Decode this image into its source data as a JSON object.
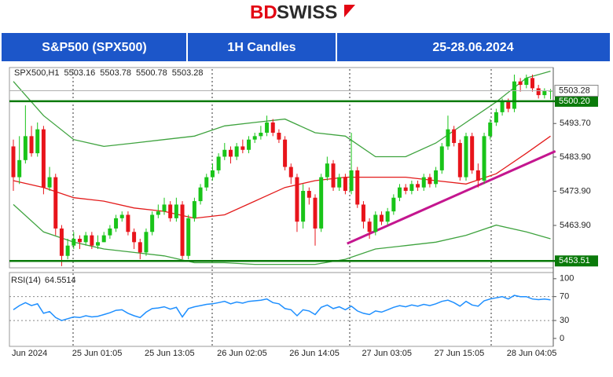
{
  "header": {
    "logo": [
      "BD",
      "SWISS"
    ],
    "tabs": [
      "S&P500 (SPX500)",
      "1H Candles",
      "25-28.06.2024"
    ]
  },
  "chart_data": [
    {
      "type": "candlestick",
      "symbol": "SPX500,H1",
      "categories": [
        "Jun 2024",
        null,
        null,
        null,
        null,
        null,
        null,
        null,
        null,
        null,
        "25 Jun 01:05",
        null,
        null,
        null,
        null,
        null,
        null,
        null,
        null,
        null,
        null,
        null,
        "25 Jun 13:05",
        null,
        null,
        null,
        null,
        null,
        null,
        null,
        null,
        null,
        null,
        null,
        "26 Jun 02:05",
        null,
        null,
        null,
        null,
        null,
        null,
        null,
        null,
        null,
        null,
        null,
        "26 Jun 14:05",
        null,
        null,
        null,
        null,
        null,
        null,
        null,
        null,
        null,
        null,
        null,
        "27 Jun 03:05",
        null,
        null,
        null,
        null,
        null,
        null,
        null,
        null,
        null,
        null,
        null,
        "27 Jun 15:05",
        null,
        null,
        null,
        null,
        null,
        null,
        null,
        null,
        null,
        null,
        null,
        "28 Jun 04:05",
        null,
        null,
        null,
        null,
        null,
        null,
        null
      ],
      "open": [
        5487,
        5478,
        5483,
        5490,
        5485,
        5492,
        5475,
        5478,
        5463,
        5455,
        5458,
        5460,
        5459,
        5461,
        5458,
        5459,
        5461,
        5463,
        5466,
        5467,
        5462,
        5459,
        5456,
        5462,
        5467,
        5468,
        5470,
        5466,
        5470,
        5455,
        5466,
        5471,
        5475,
        5478,
        5480,
        5484,
        5486,
        5484,
        5487,
        5486,
        5489,
        5490,
        5491,
        5494,
        5491,
        5489,
        5481,
        5478,
        5465,
        5474,
        5472,
        5463,
        5478,
        5482,
        5475,
        5478,
        5474,
        5480,
        5470,
        5465,
        5462,
        5467,
        5465,
        5468,
        5472,
        5475,
        5474,
        5476,
        5475,
        5478,
        5476,
        5480,
        5487,
        5492,
        5488,
        5478,
        5490,
        5480,
        5477,
        5490,
        5494,
        5497,
        5500,
        5498,
        5506,
        5505,
        5507,
        5504,
        5502,
        5503.16
      ],
      "high": [
        5489,
        5490,
        5499,
        5493,
        5494,
        5493,
        5481,
        5479,
        5464,
        5460,
        5462,
        5461,
        5462,
        5462,
        5461,
        5462,
        5464,
        5467,
        5468,
        5468,
        5463,
        5460,
        5463,
        5468,
        5470,
        5472,
        5471,
        5472,
        5471,
        5467,
        5472,
        5476,
        5479,
        5482,
        5485,
        5488,
        5487,
        5488,
        5489,
        5490,
        5491,
        5493,
        5496,
        5495,
        5492,
        5490,
        5482,
        5479,
        5476,
        5475,
        5473,
        5479,
        5484,
        5483,
        5479,
        5479,
        5491,
        5481,
        5471,
        5466,
        5468,
        5468,
        5469,
        5473,
        5476,
        5476,
        5477,
        5477,
        5479,
        5479,
        5481,
        5488,
        5496,
        5493,
        5489,
        5491,
        5491,
        5482,
        5491,
        5495,
        5498,
        5501,
        5501,
        5508,
        5507,
        5508,
        5508,
        5505,
        5504,
        5503.78
      ],
      "low": [
        5474,
        5476,
        5482,
        5484,
        5484,
        5473,
        5474,
        5461,
        5452,
        5454,
        5457,
        5457,
        5458,
        5457,
        5457,
        5459,
        5460,
        5462,
        5465,
        5461,
        5457,
        5454,
        5455,
        5461,
        5466,
        5467,
        5465,
        5465,
        5454,
        5454,
        5465,
        5470,
        5474,
        5477,
        5479,
        5483,
        5482,
        5483,
        5485,
        5485,
        5488,
        5489,
        5490,
        5490,
        5488,
        5480,
        5476,
        5462,
        5463,
        5470,
        5458,
        5462,
        5477,
        5474,
        5474,
        5473,
        5473,
        5469,
        5463,
        5460,
        5461,
        5464,
        5464,
        5467,
        5471,
        5473,
        5473,
        5474,
        5474,
        5475,
        5475,
        5479,
        5486,
        5487,
        5477,
        5477,
        5479,
        5475,
        5476,
        5489,
        5493,
        5496,
        5497,
        5497,
        5503,
        5504,
        5503,
        5501,
        5501,
        5500.78
      ],
      "close": [
        5478,
        5483,
        5490,
        5485,
        5492,
        5475,
        5478,
        5463,
        5455,
        5458,
        5460,
        5459,
        5461,
        5458,
        5459,
        5461,
        5463,
        5466,
        5467,
        5462,
        5459,
        5456,
        5462,
        5467,
        5468,
        5470,
        5466,
        5470,
        5455,
        5466,
        5471,
        5475,
        5478,
        5480,
        5484,
        5486,
        5484,
        5487,
        5486,
        5489,
        5490,
        5491,
        5494,
        5491,
        5489,
        5481,
        5478,
        5465,
        5474,
        5472,
        5463,
        5478,
        5482,
        5475,
        5478,
        5474,
        5480,
        5470,
        5465,
        5462,
        5467,
        5465,
        5468,
        5472,
        5475,
        5474,
        5476,
        5475,
        5478,
        5476,
        5480,
        5487,
        5492,
        5488,
        5478,
        5490,
        5480,
        5477,
        5490,
        5494,
        5497,
        5500,
        5498,
        5506,
        5505,
        5507,
        5504,
        5502,
        5503.16,
        5503.28
      ],
      "up_color": "#19c419",
      "down_color": "#e8141b",
      "ylim": [
        5451.5,
        5509.6
      ],
      "yticks": [
        {
          "value": 5493.7,
          "label": "5493.70"
        },
        {
          "value": 5483.9,
          "label": "5483.90"
        },
        {
          "value": 5473.9,
          "label": "5473.90"
        },
        {
          "value": 5463.9,
          "label": "5463.90"
        }
      ],
      "indicators": [
        {
          "color": "#3fa33f",
          "x": [
            0,
            5,
            10,
            15,
            20,
            25,
            30,
            35,
            40,
            45,
            50,
            55,
            60,
            65,
            70,
            75,
            80,
            85,
            89
          ],
          "values": [
            5506,
            5496,
            5489,
            5487,
            5488,
            5489,
            5490,
            5493,
            5494,
            5495,
            5491,
            5490,
            5484,
            5484,
            5488,
            5494,
            5500,
            5507,
            5509
          ]
        },
        {
          "color": "#e31b1b",
          "x": [
            0,
            5,
            10,
            15,
            20,
            25,
            30,
            35,
            40,
            45,
            50,
            55,
            60,
            65,
            70,
            75,
            80,
            85,
            89
          ],
          "values": [
            5477,
            5475,
            5472,
            5471,
            5469,
            5468,
            5466,
            5467,
            5471,
            5475,
            5477,
            5478,
            5478,
            5478,
            5477,
            5476,
            5479,
            5485,
            5490
          ]
        },
        {
          "color": "#3fa33f",
          "x": [
            0,
            5,
            10,
            15,
            20,
            25,
            30,
            35,
            40,
            45,
            50,
            55,
            60,
            65,
            70,
            75,
            80,
            85,
            89
          ],
          "values": [
            5470,
            5462,
            5459,
            5457,
            5456,
            5455,
            5453,
            5453,
            5452.5,
            5452.5,
            5452.5,
            5454,
            5457,
            5458,
            5459,
            5461,
            5464,
            5462,
            5460
          ]
        }
      ],
      "trendline": {
        "color": "#c4168f",
        "x": [
          55.3,
          89.8
        ],
        "values": [
          5458.6,
          5485.6
        ]
      },
      "levels": [
        {
          "value": 5500.2,
          "label": "5500.20"
        },
        5453.51
      ],
      "level_color": "#0a7a0a"
    },
    {
      "type": "line",
      "title": "RSI(14)",
      "values": [
        48,
        55,
        60,
        55,
        58,
        42,
        45,
        35,
        30,
        33,
        36,
        35,
        38,
        36,
        37,
        40,
        43,
        47,
        48,
        42,
        38,
        35,
        44,
        50,
        51,
        53,
        49,
        52,
        36,
        50,
        53,
        55,
        57,
        58,
        60,
        62,
        58,
        61,
        59,
        62,
        63,
        64,
        66,
        60,
        58,
        50,
        48,
        38,
        48,
        46,
        40,
        52,
        56,
        50,
        53,
        48,
        54,
        46,
        42,
        40,
        46,
        44,
        48,
        52,
        55,
        53,
        56,
        54,
        57,
        55,
        58,
        62,
        64,
        60,
        54,
        62,
        56,
        54,
        63,
        66,
        68,
        70,
        66,
        72,
        70,
        70,
        66,
        65,
        66,
        64.5514
      ],
      "color": "#1e8fff",
      "ylim": [
        -12,
        109
      ],
      "yticks": [
        100,
        70,
        30,
        0
      ],
      "levels": [
        70,
        30
      ]
    }
  ]
}
